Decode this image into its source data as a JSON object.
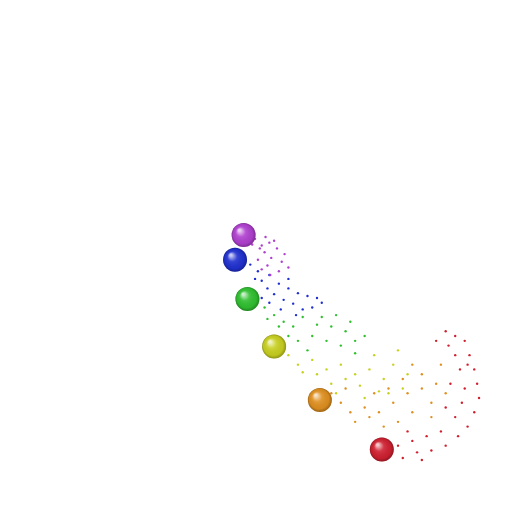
{
  "chart_data": {
    "type": "scatter",
    "xlim": [
      0,
      512
    ],
    "ylim": [
      512,
      0
    ],
    "tick_labels": false,
    "grid": false,
    "series": [
      {
        "color": "#b040d0",
        "marker": "point",
        "x": [
          255,
          262,
          270,
          278,
          265,
          258,
          272,
          283,
          268,
          280,
          260,
          275,
          286,
          266,
          252,
          290,
          271,
          262
        ],
        "y": [
          238,
          245,
          242,
          248,
          252,
          260,
          258,
          262,
          266,
          272,
          248,
          240,
          254,
          236,
          244,
          268,
          276,
          270
        ]
      },
      {
        "color": "#2030d0",
        "marker": "point",
        "x": [
          250,
          258,
          262,
          270,
          280,
          290,
          300,
          310,
          275,
          285,
          295,
          320,
          305,
          268,
          255,
          290,
          315,
          325,
          282,
          298,
          262,
          270
        ],
        "y": [
          265,
          272,
          282,
          276,
          285,
          290,
          295,
          298,
          296,
          302,
          306,
          300,
          312,
          290,
          280,
          280,
          310,
          305,
          312,
          318,
          300,
          305
        ]
      },
      {
        "color": "#30c030",
        "marker": "point",
        "x": [
          265,
          275,
          285,
          295,
          305,
          320,
          335,
          350,
          360,
          345,
          330,
          315,
          300,
          290,
          280,
          370,
          325,
          340,
          310,
          355,
          268,
          360
        ],
        "y": [
          310,
          318,
          325,
          330,
          320,
          328,
          330,
          335,
          345,
          350,
          345,
          340,
          345,
          340,
          330,
          340,
          320,
          318,
          355,
          325,
          322,
          358
        ]
      },
      {
        "color": "#c8d020",
        "marker": "point",
        "x": [
          290,
          300,
          315,
          330,
          345,
          360,
          375,
          390,
          400,
          410,
          385,
          365,
          350,
          335,
          320,
          305,
          380,
          405,
          415,
          395,
          340,
          370
        ],
        "y": [
          360,
          370,
          365,
          375,
          370,
          380,
          375,
          385,
          370,
          395,
          398,
          392,
          385,
          390,
          380,
          378,
          360,
          355,
          380,
          400,
          400,
          405
        ]
      },
      {
        "color": "#e09020",
        "marker": "point",
        "x": [
          335,
          345,
          355,
          370,
          385,
          400,
          415,
          430,
          440,
          420,
          405,
          390,
          375,
          360,
          430,
          445,
          450,
          420,
          410,
          440,
          350,
          380,
          455,
          395
        ],
        "y": [
          400,
          410,
          420,
          415,
          420,
          410,
          400,
          395,
          410,
          420,
          430,
          435,
          425,
          430,
          380,
          390,
          370,
          370,
          385,
          425,
          395,
          400,
          400,
          395
        ]
      },
      {
        "color": "#d02030",
        "marker": "point",
        "x": [
          455,
          465,
          475,
          480,
          485,
          488,
          490,
          485,
          478,
          468,
          455,
          440,
          425,
          410,
          405,
          420,
          435,
          450,
          465,
          472,
          475,
          470,
          465,
          458,
          445,
          460,
          455,
          430,
          415,
          478
        ],
        "y": [
          335,
          340,
          345,
          360,
          375,
          390,
          405,
          420,
          435,
          445,
          455,
          460,
          462,
          468,
          455,
          450,
          445,
          440,
          425,
          410,
          395,
          375,
          360,
          350,
          345,
          390,
          415,
          470,
          440,
          370
        ]
      },
      {
        "color": "#b040d0",
        "marker": "sphere",
        "x": [
          243
        ],
        "y": [
          234
        ]
      },
      {
        "color": "#2030d0",
        "marker": "sphere",
        "x": [
          234
        ],
        "y": [
          260
        ]
      },
      {
        "color": "#30c030",
        "marker": "sphere",
        "x": [
          247
        ],
        "y": [
          301
        ]
      },
      {
        "color": "#c8d020",
        "marker": "sphere",
        "x": [
          275
        ],
        "y": [
          351
        ]
      },
      {
        "color": "#e09020",
        "marker": "sphere",
        "x": [
          323
        ],
        "y": [
          407
        ]
      },
      {
        "color": "#d02030",
        "marker": "sphere",
        "x": [
          388
        ],
        "y": [
          459
        ]
      }
    ]
  }
}
